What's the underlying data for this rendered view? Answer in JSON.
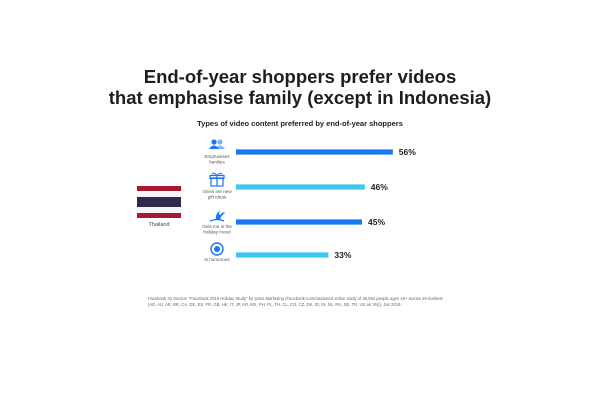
{
  "title_lines": [
    "End-of-year shoppers prefer videos",
    "that emphasise family (except in Indonesia)"
  ],
  "subtitle": "Types of video content preferred by end-of-year shoppers",
  "country": "Thailand",
  "colors": {
    "dark_bar": "#1877f2",
    "light_bar": "#3cc6f0",
    "icon": "#1877f2",
    "flag_red": "#a51931",
    "flag_white": "#f4f5f8",
    "flag_blue": "#2d2a4a"
  },
  "chart_data": {
    "type": "bar",
    "orientation": "horizontal",
    "categories": [
      "Emphasises families",
      "Gives me new gift ideas",
      "Gets me in the holiday mood",
      "Is humorous"
    ],
    "category_label_lines": [
      [
        "Emphasises",
        "families"
      ],
      [
        "Gives me new",
        "gift ideas"
      ],
      [
        "Gets me in the",
        "holiday mood"
      ],
      [
        "Is humorous"
      ]
    ],
    "icons": [
      "family-icon",
      "gift-icon",
      "holiday-tree-icon",
      "humorous-face-icon"
    ],
    "values": [
      56,
      46,
      45,
      33
    ],
    "value_labels": [
      "56%",
      "46%",
      "45%",
      "33%"
    ],
    "bar_colors": [
      "dark",
      "light",
      "dark",
      "light"
    ],
    "xlim": [
      0,
      60
    ],
    "title": "Types of video content preferred by end-of-year shoppers"
  },
  "footer_lines": [
    "Facebook IQ Source: \"Facebook 2019 Holiday Study\" by Ipsos Marketing (Facebook-commissioned online study of 45,064 people ages 18+ across 29 markets",
    "(AE, AU, AR, BR, CA, DE, ES, FR, GB, HK, IT, JP, KR, MX, PH, PL, TH, CL, CO, CZ, DK, ID, IN, NL, RU, SE, TR, US an VN)), Jan 2019."
  ]
}
